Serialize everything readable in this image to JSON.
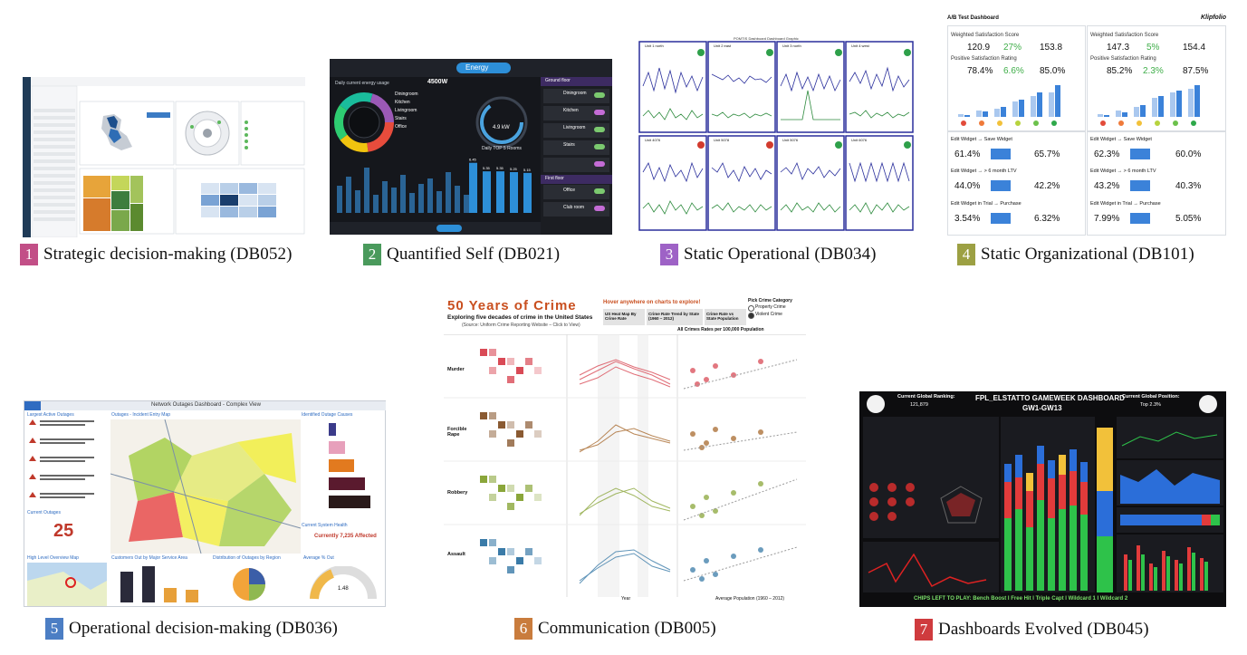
{
  "figures": [
    {
      "number": "1",
      "caption": "Strategic decision-making (DB052)",
      "color": "#c24f87"
    },
    {
      "number": "2",
      "caption": "Quantified Self (DB021)",
      "color": "#4a9a5c"
    },
    {
      "number": "3",
      "caption": "Static Operational (DB034)",
      "color": "#9e62c6"
    },
    {
      "number": "4",
      "caption": "Static Organizational (DB101)",
      "color": "#9ca043"
    },
    {
      "number": "5",
      "caption": "Operational decision-making (DB036)",
      "color": "#4c7ec4"
    },
    {
      "number": "6",
      "caption": "Communication (DB005)",
      "color": "#c97c3d"
    },
    {
      "number": "7",
      "caption": "Dashboards Evolved (DB045)",
      "color": "#cf3b3e"
    }
  ],
  "db021": {
    "energy_tab": "Energy",
    "daily_usage": "Daily current energy usage",
    "watts": "4500W",
    "gauge": "4.9 kW",
    "top5": "Daily TOP 5 Rooms",
    "rooms": [
      "Diningroom",
      "Kitchen",
      "Livingroom",
      "Stairs",
      "Office"
    ],
    "bars": [
      6.45,
      5.35,
      5.35,
      5.25,
      5.15
    ],
    "side": [
      "Ground floor",
      "Diningroom",
      "Kitchen",
      "Livingroom",
      "Stairs",
      "First floor",
      "Office",
      "Club room"
    ]
  },
  "db034": {
    "title": "POMTIS Dashboard Dashboard Graphic",
    "units_top": [
      "Unit 1 north",
      "Unit 2 east",
      "Unit 3 north",
      "Unit 4 west"
    ],
    "units_bottom": [
      "Unit 4076",
      "Unit 5078",
      "Unit 5076",
      "Unit 6076"
    ]
  },
  "db101": {
    "title": "A/B Test Dashboard",
    "brand": "Klipfolio",
    "left": {
      "wss_label": "Weighted Satisfaction Score",
      "wss": [
        "120.9",
        "27%",
        "153.8"
      ],
      "psr_label": "Positive Satisfaction Rating",
      "psr": [
        "78.4%",
        "6.6%",
        "85.0%"
      ],
      "rows": [
        {
          "label": "Edit Widget → Save Widget",
          "a": "61.4%",
          "b": "65.7%"
        },
        {
          "label": "Edit Widget → > 6 month LTV",
          "a": "44.0%",
          "b": "42.2%"
        },
        {
          "label": "Edit Widget in Trial → Purchase",
          "a": "3.54%",
          "b": "6.32%"
        }
      ]
    },
    "right": {
      "wss_label": "Weighted Satisfaction Score",
      "wss": [
        "147.3",
        "5%",
        "154.4"
      ],
      "psr_label": "Positive Satisfaction Rating",
      "psr": [
        "85.2%",
        "2.3%",
        "87.5%"
      ],
      "rows": [
        {
          "label": "Edit Widget → Save Widget",
          "a": "62.3%",
          "b": "60.0%"
        },
        {
          "label": "Edit Widget → > 6 month LTV",
          "a": "43.2%",
          "b": "40.3%"
        },
        {
          "label": "Edit Widget in Trial → Purchase",
          "a": "7.99%",
          "b": "5.05%"
        }
      ]
    }
  },
  "db005": {
    "title": "50 Years of Crime",
    "subtitle": "Exploring five decades of crime in the United States",
    "source": "(Source: Uniform Crime Reporting Website – Click to View)",
    "hover": "Hover anywhere on charts to explore!",
    "tab1": "US Heat Map By Crime Rate",
    "tab2": "Crime Rate Trend by State (1960 – 2012)",
    "tab3": "Crime Rate vs State Population",
    "pick": "Pick Crime Category",
    "opt1": "Property Crime",
    "opt2": "Violent Crime",
    "rates_note": "All Crimes Rates per 100,000 Population",
    "rows": [
      "Murder",
      "Forcible Rape",
      "Robbery",
      "Assault"
    ],
    "x_year": "Year",
    "x_pop": "Average Population (1960 – 2012)"
  },
  "db036": {
    "window_title": "Network Outages Dashboard - Complex View",
    "largest": "Largest Active Outages",
    "current": "Current Outages",
    "current_value": "25",
    "map_title": "Outages - Incident Entry Map",
    "causes": "Identified Outage Causes",
    "affected": "Currently 7,235 Affected",
    "health": "Current System Health",
    "overview": "High Level Overview Map",
    "service": "Customers Out by Major Service Area",
    "region": "Distribution of Outages by Region",
    "avg": "Average % Out",
    "gauge_value": "1.48"
  },
  "db045": {
    "title": "FPL_ELSTATTO GAMEWEEK DASHBOARD",
    "sub": "GW1-GW13",
    "rank_label": "Current Global Ranking:",
    "rank": "121,879",
    "pos_label": "Current Global Position:",
    "pos": "Top 2.3%",
    "chips": "CHIPS LEFT TO PLAY: Bench Boost I Free Hit I Triple Capt I Wildcard 1 I Wildcard 2"
  }
}
